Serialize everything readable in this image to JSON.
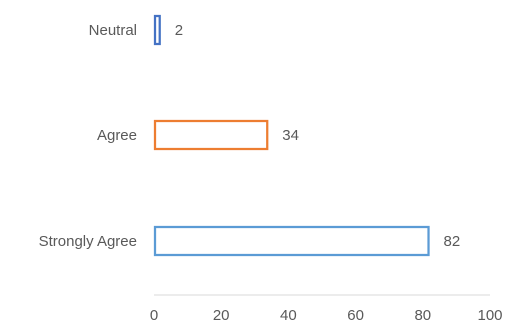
{
  "chart_data": {
    "type": "bar",
    "orientation": "horizontal",
    "categories": [
      "Neutral",
      "Agree",
      "Strongly Agree"
    ],
    "values": [
      2,
      34,
      82
    ],
    "data_labels": [
      "2",
      "34",
      "82"
    ],
    "colors": [
      "#4472C4",
      "#ED7D31",
      "#5B9BD5"
    ],
    "fill": "none",
    "xlim": [
      0,
      100
    ],
    "xticks": [
      0,
      20,
      40,
      60,
      80,
      100
    ],
    "xtick_labels": [
      "0",
      "20",
      "40",
      "60",
      "80",
      "100"
    ],
    "title": "",
    "xlabel": "",
    "ylabel": "",
    "grid": false,
    "legend": false
  }
}
